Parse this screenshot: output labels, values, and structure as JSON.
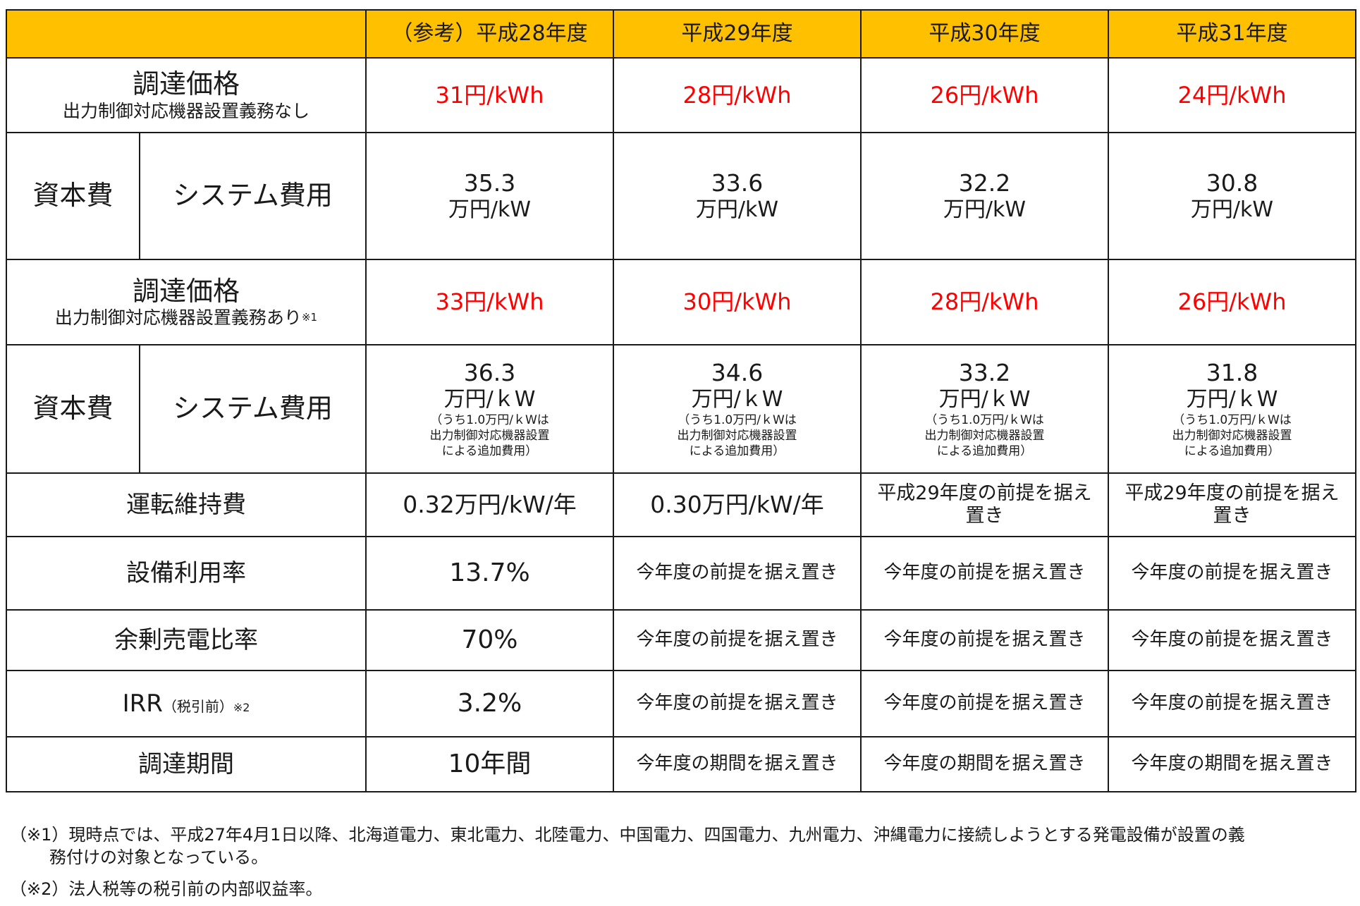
{
  "header": {
    "blank": "",
    "col1": "（参考）平成28年度",
    "col2": "平成29年度",
    "col3": "平成30年度",
    "col4": "平成31年度"
  },
  "rows": {
    "price_no": {
      "label": "調達価格",
      "sub": "出力制御対応機器設置義務なし",
      "values": [
        "31円/kWh",
        "28円/kWh",
        "26円/kWh",
        "24円/kWh"
      ]
    },
    "capex_no": {
      "label1": "資本費",
      "label2": "システム費用",
      "values": [
        {
          "num": "35.3",
          "unit": "万円/kW"
        },
        {
          "num": "33.6",
          "unit": "万円/kW"
        },
        {
          "num": "32.2",
          "unit": "万円/kW"
        },
        {
          "num": "30.8",
          "unit": "万円/kW"
        }
      ]
    },
    "price_yes": {
      "label": "調達価格",
      "sub": "出力制御対応機器設置義務あり",
      "sub_mark": "※1",
      "values": [
        "33円/kWh",
        "30円/kWh",
        "28円/kWh",
        "26円/kWh"
      ]
    },
    "capex_yes": {
      "label1": "資本費",
      "label2": "システム費用",
      "values": [
        {
          "num": "36.3",
          "unit": "万円/ｋW",
          "n1": "（うち1.0万円/ｋWは",
          "n2": "出力制御対応機器設置",
          "n3": "による追加費用）"
        },
        {
          "num": "34.6",
          "unit": "万円/ｋW",
          "n1": "（うち1.0万円/ｋWは",
          "n2": "出力制御対応機器設置",
          "n3": "による追加費用）"
        },
        {
          "num": "33.2",
          "unit": "万円/ｋW",
          "n1": "（うち1.0万円/ｋWは",
          "n2": "出力制御対応機器設置",
          "n3": "による追加費用）"
        },
        {
          "num": "31.8",
          "unit": "万円/ｋW",
          "n1": "（うち1.0万円/ｋWは",
          "n2": "出力制御対応機器設置",
          "n3": "による追加費用）"
        }
      ]
    },
    "opex": {
      "label": "運転維持費",
      "values": [
        "0.32万円/kW/年",
        "0.30万円/kW/年",
        "平成29年度の前提を据え置き",
        "平成29年度の前提を据え置き"
      ]
    },
    "util": {
      "label": "設備利用率",
      "values": [
        "13.7%",
        "今年度の前提を据え置き",
        "今年度の前提を据え置き",
        "今年度の前提を据え置き"
      ]
    },
    "surplus": {
      "label": "余剰売電比率",
      "values": [
        "70%",
        "今年度の前提を据え置き",
        "今年度の前提を据え置き",
        "今年度の前提を据え置き"
      ]
    },
    "irr": {
      "label": "IRR",
      "label_sub": "（税引前）",
      "label_mark": "※2",
      "values": [
        "3.2%",
        "今年度の前提を据え置き",
        "今年度の前提を据え置き",
        "今年度の前提を据え置き"
      ]
    },
    "period": {
      "label": "調達期間",
      "values": [
        "10年間",
        "今年度の期間を据え置き",
        "今年度の期間を据え置き",
        "今年度の期間を据え置き"
      ]
    }
  },
  "footnotes": {
    "n1_line1": "（※1）現時点では、平成27年4月1日以降、北海道電力、東北電力、北陸電力、中国電力、四国電力、九州電力、沖縄電力に接続しようとする発電設備が設置の義",
    "n1_line2": "務付けの対象となっている。",
    "n2": "（※2）法人税等の税引前の内部収益率。"
  },
  "colors": {
    "header_bg": "#ffc000",
    "price_text": "#ff0000",
    "border": "#1a1a1a"
  }
}
